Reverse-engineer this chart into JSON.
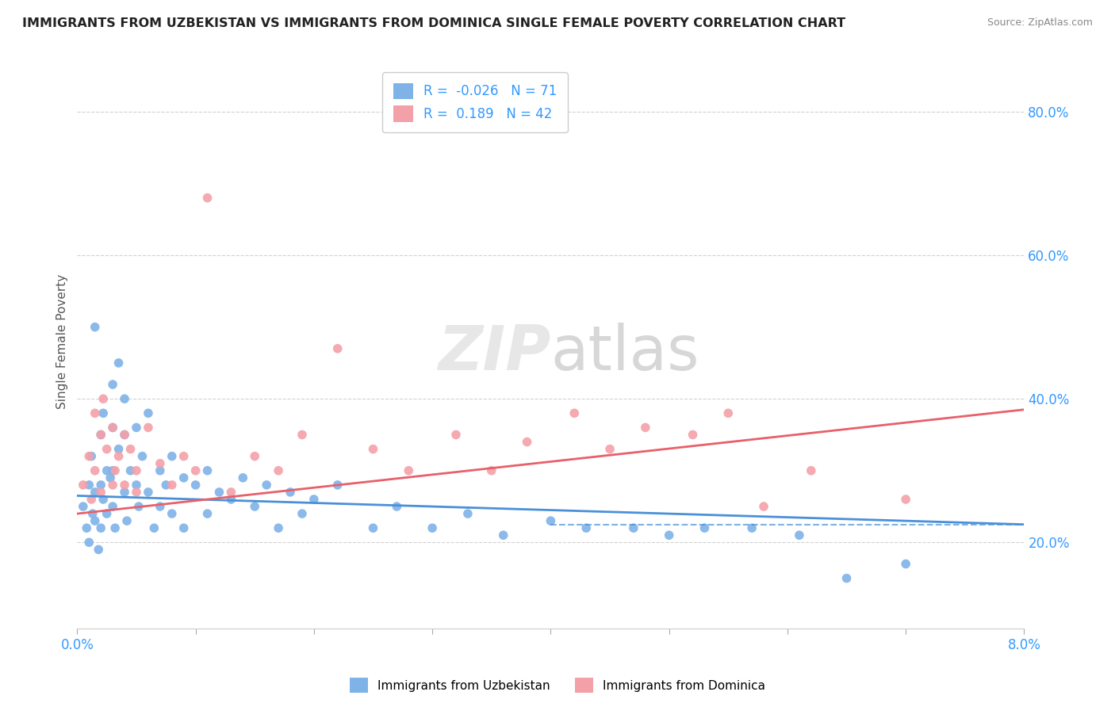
{
  "title": "IMMIGRANTS FROM UZBEKISTAN VS IMMIGRANTS FROM DOMINICA SINGLE FEMALE POVERTY CORRELATION CHART",
  "source_text": "Source: ZipAtlas.com",
  "ylabel": "Single Female Poverty",
  "r_uzbekistan": -0.026,
  "n_uzbekistan": 71,
  "r_dominica": 0.189,
  "n_dominica": 42,
  "uzbekistan_color": "#7FB3E8",
  "dominica_color": "#F4A0A8",
  "uzbekistan_line_color": "#4A90D9",
  "dominica_line_color": "#E8606A",
  "right_yticks": [
    0.2,
    0.4,
    0.6,
    0.8
  ],
  "right_yticklabels": [
    "20.0%",
    "40.0%",
    "60.0%",
    "80.0%"
  ],
  "xlim": [
    0.0,
    0.08
  ],
  "ylim": [
    0.08,
    0.88
  ],
  "uzbekistan_x": [
    0.0005,
    0.0008,
    0.001,
    0.001,
    0.0012,
    0.0013,
    0.0015,
    0.0015,
    0.0015,
    0.0018,
    0.002,
    0.002,
    0.002,
    0.0022,
    0.0022,
    0.0025,
    0.0025,
    0.0028,
    0.003,
    0.003,
    0.003,
    0.003,
    0.0032,
    0.0035,
    0.0035,
    0.004,
    0.004,
    0.004,
    0.0042,
    0.0045,
    0.005,
    0.005,
    0.0052,
    0.0055,
    0.006,
    0.006,
    0.0065,
    0.007,
    0.007,
    0.0075,
    0.008,
    0.008,
    0.009,
    0.009,
    0.01,
    0.011,
    0.011,
    0.012,
    0.013,
    0.014,
    0.015,
    0.016,
    0.017,
    0.018,
    0.019,
    0.02,
    0.022,
    0.025,
    0.027,
    0.03,
    0.033,
    0.036,
    0.04,
    0.043,
    0.047,
    0.05,
    0.053,
    0.057,
    0.061,
    0.065,
    0.07
  ],
  "uzbekistan_y": [
    0.25,
    0.22,
    0.28,
    0.2,
    0.32,
    0.24,
    0.5,
    0.27,
    0.23,
    0.19,
    0.35,
    0.28,
    0.22,
    0.38,
    0.26,
    0.3,
    0.24,
    0.29,
    0.42,
    0.36,
    0.3,
    0.25,
    0.22,
    0.45,
    0.33,
    0.4,
    0.35,
    0.27,
    0.23,
    0.3,
    0.36,
    0.28,
    0.25,
    0.32,
    0.38,
    0.27,
    0.22,
    0.3,
    0.25,
    0.28,
    0.32,
    0.24,
    0.29,
    0.22,
    0.28,
    0.3,
    0.24,
    0.27,
    0.26,
    0.29,
    0.25,
    0.28,
    0.22,
    0.27,
    0.24,
    0.26,
    0.28,
    0.22,
    0.25,
    0.22,
    0.24,
    0.21,
    0.23,
    0.22,
    0.22,
    0.21,
    0.22,
    0.22,
    0.21,
    0.15,
    0.17
  ],
  "dominica_x": [
    0.0005,
    0.001,
    0.0012,
    0.0015,
    0.0015,
    0.002,
    0.002,
    0.0022,
    0.0025,
    0.003,
    0.003,
    0.0032,
    0.0035,
    0.004,
    0.004,
    0.0045,
    0.005,
    0.005,
    0.006,
    0.007,
    0.008,
    0.009,
    0.01,
    0.011,
    0.013,
    0.015,
    0.017,
    0.019,
    0.022,
    0.025,
    0.028,
    0.032,
    0.035,
    0.038,
    0.042,
    0.045,
    0.048,
    0.052,
    0.055,
    0.058,
    0.062,
    0.07
  ],
  "dominica_y": [
    0.28,
    0.32,
    0.26,
    0.38,
    0.3,
    0.35,
    0.27,
    0.4,
    0.33,
    0.28,
    0.36,
    0.3,
    0.32,
    0.35,
    0.28,
    0.33,
    0.3,
    0.27,
    0.36,
    0.31,
    0.28,
    0.32,
    0.3,
    0.68,
    0.27,
    0.32,
    0.3,
    0.35,
    0.47,
    0.33,
    0.3,
    0.35,
    0.3,
    0.34,
    0.38,
    0.33,
    0.36,
    0.35,
    0.38,
    0.25,
    0.3,
    0.26
  ],
  "uzbekistan_trend": [
    0.0,
    0.08
  ],
  "uzbekistan_trend_y": [
    0.265,
    0.225
  ],
  "dominica_trend": [
    0.0,
    0.08
  ],
  "dominica_trend_y": [
    0.24,
    0.385
  ]
}
